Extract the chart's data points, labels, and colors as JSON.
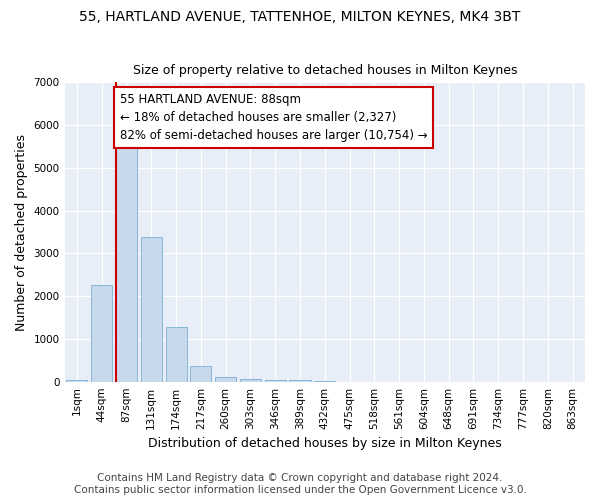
{
  "title_line1": "55, HARTLAND AVENUE, TATTENHOE, MILTON KEYNES, MK4 3BT",
  "title_line2": "Size of property relative to detached houses in Milton Keynes",
  "xlabel": "Distribution of detached houses by size in Milton Keynes",
  "ylabel": "Number of detached properties",
  "categories": [
    "1sqm",
    "44sqm",
    "87sqm",
    "131sqm",
    "174sqm",
    "217sqm",
    "260sqm",
    "303sqm",
    "346sqm",
    "389sqm",
    "432sqm",
    "475sqm",
    "518sqm",
    "561sqm",
    "604sqm",
    "648sqm",
    "691sqm",
    "734sqm",
    "777sqm",
    "820sqm",
    "863sqm"
  ],
  "values": [
    50,
    2270,
    5480,
    3380,
    1290,
    370,
    110,
    70,
    50,
    50,
    10,
    0,
    0,
    0,
    0,
    0,
    0,
    0,
    0,
    0,
    0
  ],
  "bar_color": "#c9d9ec",
  "bar_edge_color": "#7bafd4",
  "property_line_bar_index": 2,
  "annotation_text": "55 HARTLAND AVENUE: 88sqm\n← 18% of detached houses are smaller (2,327)\n82% of semi-detached houses are larger (10,754) →",
  "annotation_box_color": "#ffffff",
  "annotation_box_edge": "#cc0000",
  "property_line_color": "#cc0000",
  "ylim": [
    0,
    7000
  ],
  "yticks": [
    0,
    1000,
    2000,
    3000,
    4000,
    5000,
    6000,
    7000
  ],
  "footer_line1": "Contains HM Land Registry data © Crown copyright and database right 2024.",
  "footer_line2": "Contains public sector information licensed under the Open Government Licence v3.0.",
  "bg_color": "#ffffff",
  "plot_bg_color": "#e8eef7",
  "grid_color": "#ffffff",
  "title_fontsize": 10,
  "subtitle_fontsize": 9,
  "axis_label_fontsize": 9,
  "tick_fontsize": 7.5,
  "annotation_fontsize": 8.5,
  "footer_fontsize": 7.5,
  "ylabel_fontsize": 9
}
